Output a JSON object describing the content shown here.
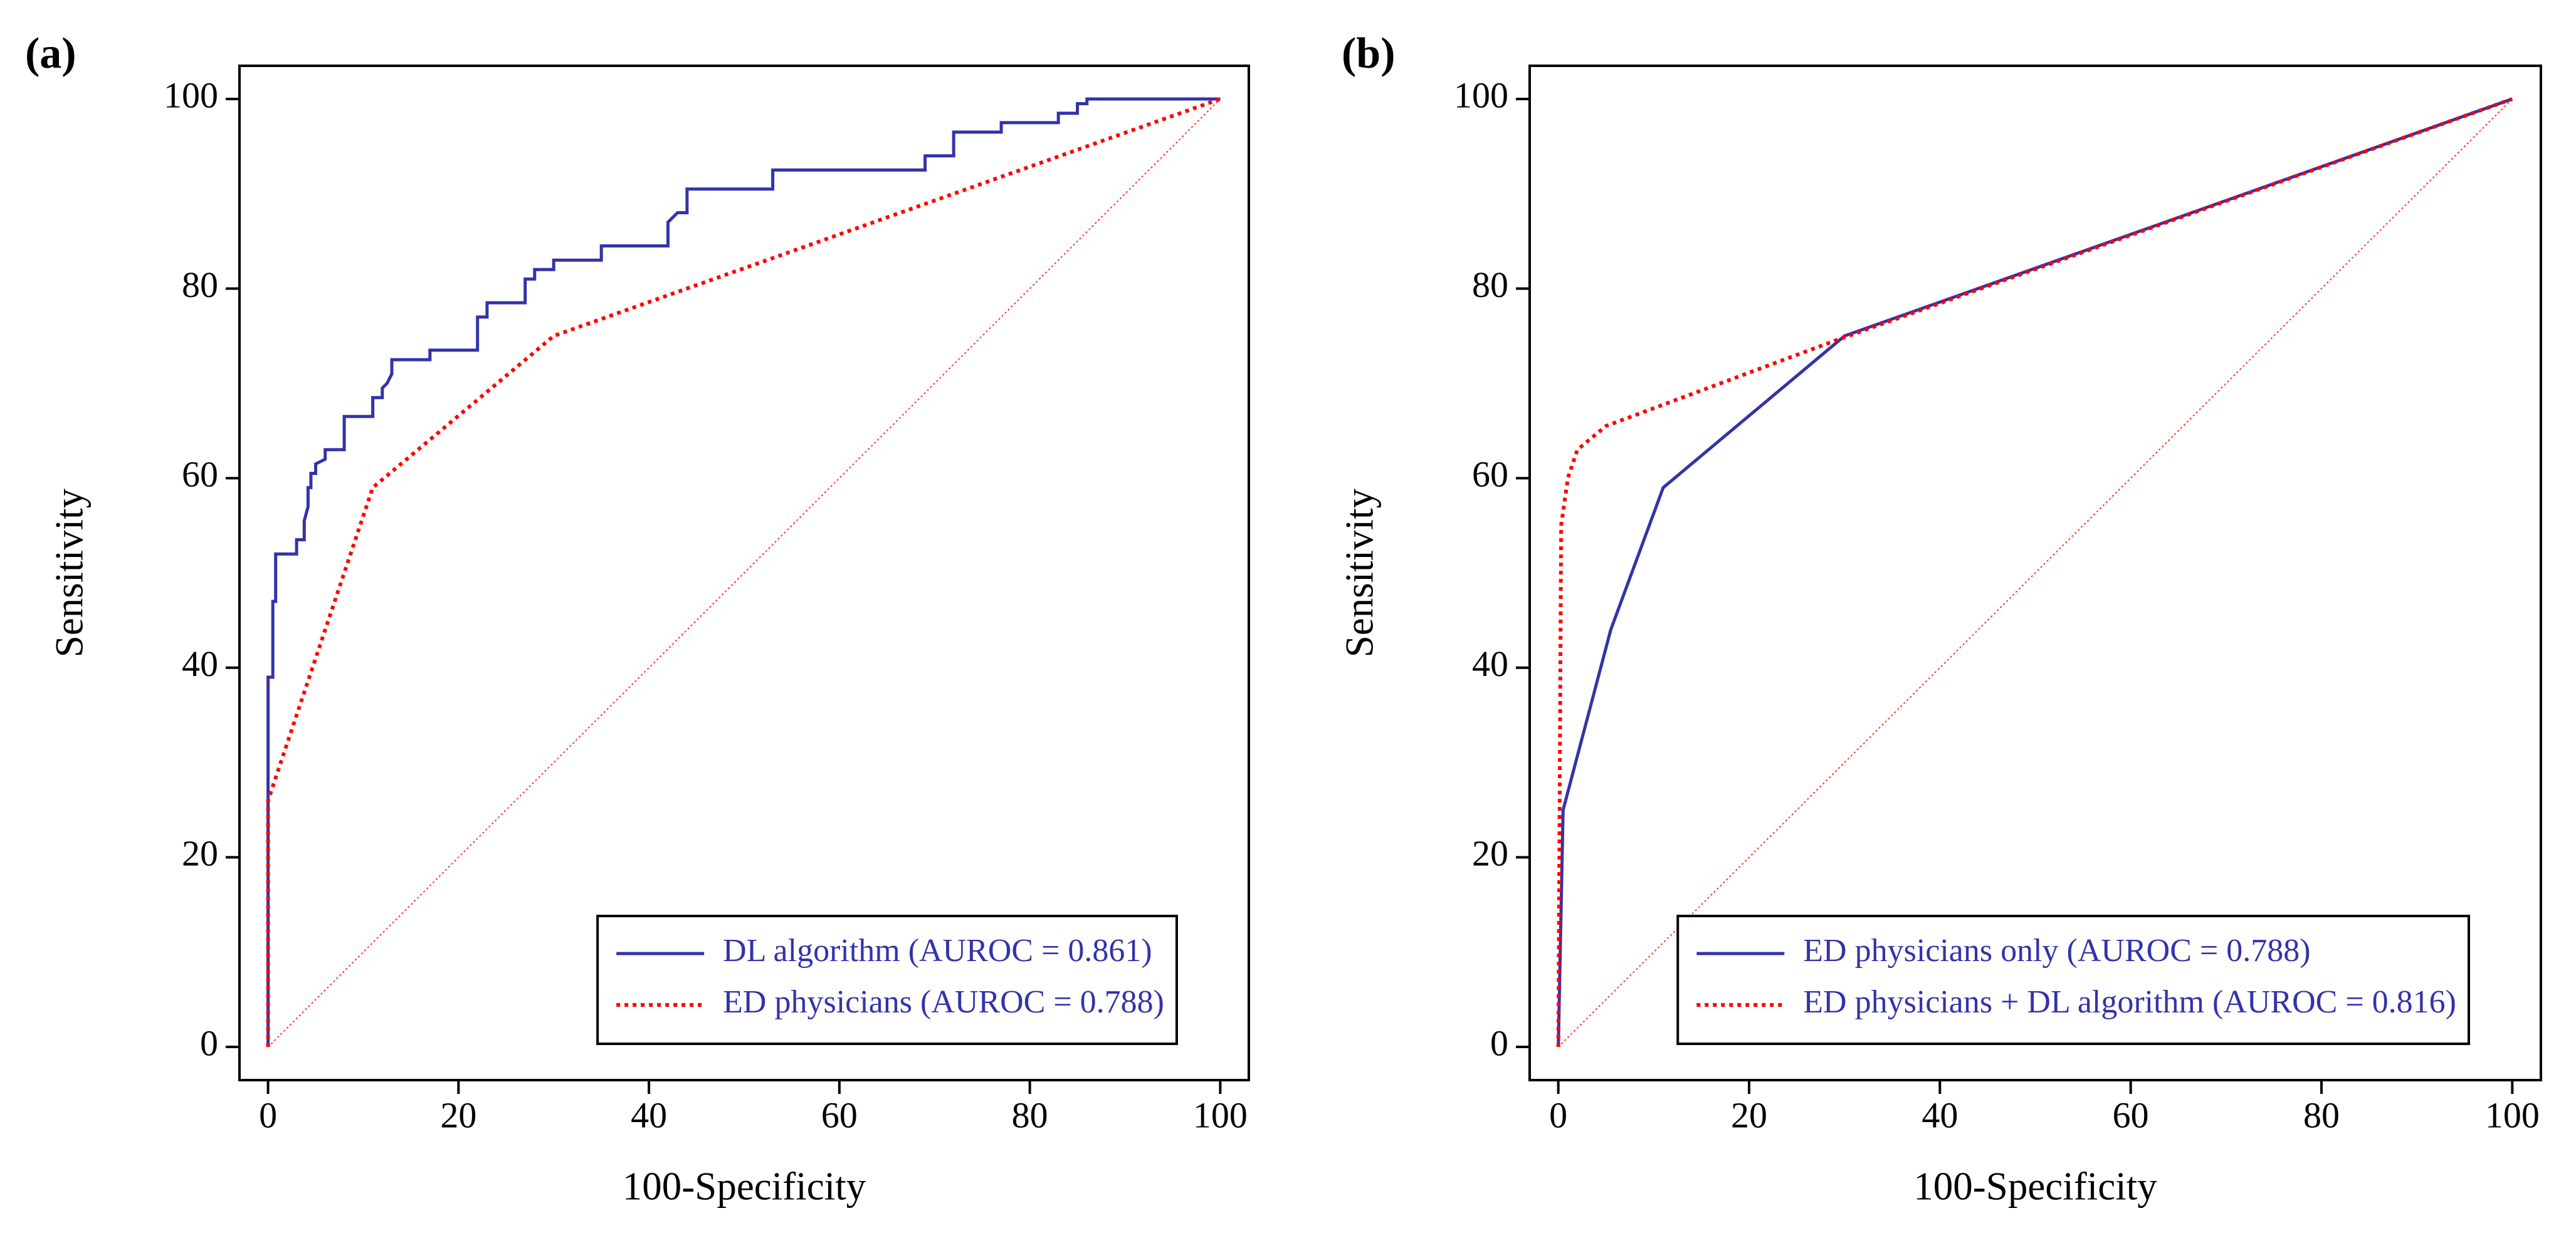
{
  "chart_data": [
    {
      "type": "line",
      "panel_label": "(a)",
      "x_label": "100-Specificity",
      "y_label": "Sensitivity",
      "xlim": [
        -3,
        103
      ],
      "ylim": [
        -3.5,
        103.5
      ],
      "xticks": [
        0,
        20,
        40,
        60,
        80,
        100
      ],
      "yticks": [
        0,
        20,
        40,
        60,
        80,
        100
      ],
      "legend": "lower right",
      "series": [
        {
          "name": "DL algorithm (AUROC = 0.861)",
          "color": "#3333aa",
          "style": "solid",
          "x": [
            0,
            0,
            0.5,
            0.5,
            0.8,
            0.8,
            3,
            3,
            3.8,
            3.8,
            4.2,
            4.2,
            4.5,
            4.5,
            5,
            5,
            6,
            6,
            8,
            8,
            11,
            11,
            12,
            12,
            12.5,
            13,
            13,
            17,
            17,
            22,
            22,
            23,
            23,
            27,
            27,
            28,
            28,
            30,
            30,
            35,
            35,
            42,
            42,
            43,
            44,
            44,
            53,
            53,
            69,
            69,
            72,
            72,
            77,
            77,
            83,
            83,
            85,
            85,
            86,
            86,
            100
          ],
          "values": [
            0,
            39,
            39,
            47,
            47,
            52,
            52,
            53.5,
            53.5,
            55.5,
            57,
            59,
            59,
            60.5,
            60.5,
            61.5,
            62,
            63,
            63,
            66.5,
            66.5,
            68.5,
            68.5,
            69.5,
            70,
            71,
            72.5,
            72.5,
            73.5,
            73.5,
            77,
            77,
            78.5,
            78.5,
            81,
            81,
            82,
            82,
            83,
            83,
            84.5,
            84.5,
            87,
            88,
            88,
            90.5,
            90.5,
            92.5,
            92.5,
            94,
            94,
            96.5,
            96.5,
            97.5,
            97.5,
            98.5,
            98.5,
            99.5,
            99.5,
            100,
            100
          ]
        },
        {
          "name": "ED physicians (AUROC = 0.788)",
          "color": "#ff0000",
          "style": "dotted",
          "x": [
            0,
            0,
            11,
            30,
            100
          ],
          "values": [
            0,
            26,
            59,
            75,
            100
          ]
        }
      ]
    },
    {
      "type": "line",
      "panel_label": "(b)",
      "x_label": "100-Specificity",
      "y_label": "Sensitivity",
      "xlim": [
        -3,
        103
      ],
      "ylim": [
        -3.5,
        103.5
      ],
      "xticks": [
        0,
        20,
        40,
        60,
        80,
        100
      ],
      "yticks": [
        0,
        20,
        40,
        60,
        80,
        100
      ],
      "legend": "lower right",
      "series": [
        {
          "name": "ED physicians only (AUROC = 0.788)",
          "color": "#3333aa",
          "style": "solid",
          "x": [
            0,
            0.5,
            5.5,
            11,
            30,
            100
          ],
          "values": [
            0,
            25,
            44,
            59,
            75,
            100
          ]
        },
        {
          "name": "ED physicians + DL algorithm (AUROC = 0.816)",
          "color": "#ff0000",
          "style": "dotted",
          "x": [
            0,
            0.3,
            1,
            2,
            5,
            29,
            100
          ],
          "values": [
            0,
            55,
            60,
            63,
            65.5,
            74.5,
            100
          ]
        }
      ]
    }
  ]
}
